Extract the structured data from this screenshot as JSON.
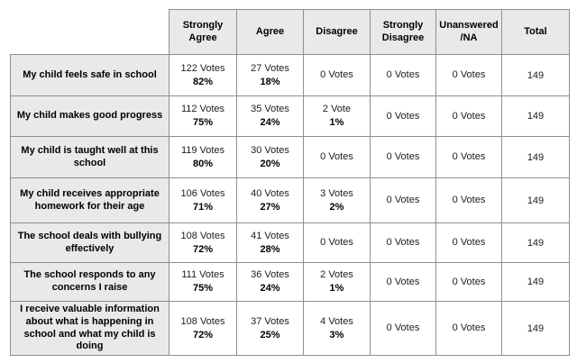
{
  "colors": {
    "header_background": "#e9e9e9",
    "label_background": "#e9e9e9",
    "cell_background": "#ffffff",
    "border": "#8f8f8f",
    "text": "#000000"
  },
  "table": {
    "columns": [
      "Strongly Agree",
      "Agree",
      "Disagree",
      "Strongly Disagree",
      "Unanswered /NA",
      "Total"
    ],
    "rows": [
      {
        "label": "My child feels safe in school",
        "cells": [
          {
            "votes": "122 Votes",
            "pct": "82%"
          },
          {
            "votes": "27 Votes",
            "pct": "18%"
          },
          {
            "votes": "0 Votes",
            "pct": ""
          },
          {
            "votes": "0 Votes",
            "pct": ""
          },
          {
            "votes": "0 Votes",
            "pct": ""
          }
        ],
        "total": "149"
      },
      {
        "label": "My child makes good progress",
        "cells": [
          {
            "votes": "112 Votes",
            "pct": "75%"
          },
          {
            "votes": "35 Votes",
            "pct": "24%"
          },
          {
            "votes": "2 Vote",
            "pct": "1%"
          },
          {
            "votes": "0 Votes",
            "pct": ""
          },
          {
            "votes": "0 Votes",
            "pct": ""
          }
        ],
        "total": "149"
      },
      {
        "label": "My child is taught well at this school",
        "cells": [
          {
            "votes": "119 Votes",
            "pct": "80%"
          },
          {
            "votes": "30 Votes",
            "pct": "20%"
          },
          {
            "votes": "0 Votes",
            "pct": ""
          },
          {
            "votes": "0 Votes",
            "pct": ""
          },
          {
            "votes": "0 Votes",
            "pct": ""
          }
        ],
        "total": "149"
      },
      {
        "label": "My child receives appropriate homework for their age",
        "cells": [
          {
            "votes": "106 Votes",
            "pct": "71%"
          },
          {
            "votes": "40 Votes",
            "pct": "27%"
          },
          {
            "votes": "3 Votes",
            "pct": "2%"
          },
          {
            "votes": "0 Votes",
            "pct": ""
          },
          {
            "votes": "0 Votes",
            "pct": ""
          }
        ],
        "total": "149"
      },
      {
        "label": "The school deals with bullying effectively",
        "cells": [
          {
            "votes": "108 Votes",
            "pct": "72%"
          },
          {
            "votes": "41 Votes",
            "pct": "28%"
          },
          {
            "votes": "0 Votes",
            "pct": ""
          },
          {
            "votes": "0 Votes",
            "pct": ""
          },
          {
            "votes": "0 Votes",
            "pct": ""
          }
        ],
        "total": "149"
      },
      {
        "label": "The school responds to any concerns I raise",
        "cells": [
          {
            "votes": "111 Votes",
            "pct": "75%"
          },
          {
            "votes": "36 Votes",
            "pct": "24%"
          },
          {
            "votes": "2 Votes",
            "pct": "1%"
          },
          {
            "votes": "0 Votes",
            "pct": ""
          },
          {
            "votes": "0 Votes",
            "pct": ""
          }
        ],
        "total": "149"
      },
      {
        "label": "I receive valuable information about what is happening in school and what my child is doing",
        "cells": [
          {
            "votes": "108 Votes",
            "pct": "72%"
          },
          {
            "votes": "37 Votes",
            "pct": "25%"
          },
          {
            "votes": "4 Votes",
            "pct": "3%"
          },
          {
            "votes": "0 Votes",
            "pct": ""
          },
          {
            "votes": "0 Votes",
            "pct": ""
          }
        ],
        "total": "149"
      }
    ]
  },
  "chart_data": {
    "type": "table",
    "columns": [
      "Strongly Agree",
      "Agree",
      "Disagree",
      "Strongly Disagree",
      "Unanswered/NA",
      "Total"
    ],
    "rows": [
      {
        "question": "My child feels safe in school",
        "strongly_agree_votes": 122,
        "strongly_agree_pct": 82,
        "agree_votes": 27,
        "agree_pct": 18,
        "disagree_votes": 0,
        "strongly_disagree_votes": 0,
        "unanswered_na_votes": 0,
        "total": 149
      },
      {
        "question": "My child makes good progress",
        "strongly_agree_votes": 112,
        "strongly_agree_pct": 75,
        "agree_votes": 35,
        "agree_pct": 24,
        "disagree_votes": 2,
        "disagree_pct": 1,
        "strongly_disagree_votes": 0,
        "unanswered_na_votes": 0,
        "total": 149
      },
      {
        "question": "My child is taught well at this school",
        "strongly_agree_votes": 119,
        "strongly_agree_pct": 80,
        "agree_votes": 30,
        "agree_pct": 20,
        "disagree_votes": 0,
        "strongly_disagree_votes": 0,
        "unanswered_na_votes": 0,
        "total": 149
      },
      {
        "question": "My child receives appropriate homework for their age",
        "strongly_agree_votes": 106,
        "strongly_agree_pct": 71,
        "agree_votes": 40,
        "agree_pct": 27,
        "disagree_votes": 3,
        "disagree_pct": 2,
        "strongly_disagree_votes": 0,
        "unanswered_na_votes": 0,
        "total": 149
      },
      {
        "question": "The school deals with bullying effectively",
        "strongly_agree_votes": 108,
        "strongly_agree_pct": 72,
        "agree_votes": 41,
        "agree_pct": 28,
        "disagree_votes": 0,
        "strongly_disagree_votes": 0,
        "unanswered_na_votes": 0,
        "total": 149
      },
      {
        "question": "The school responds to any concerns I raise",
        "strongly_agree_votes": 111,
        "strongly_agree_pct": 75,
        "agree_votes": 36,
        "agree_pct": 24,
        "disagree_votes": 2,
        "disagree_pct": 1,
        "strongly_disagree_votes": 0,
        "unanswered_na_votes": 0,
        "total": 149
      },
      {
        "question": "I receive valuable information about what is happening in school and what my child is doing",
        "strongly_agree_votes": 108,
        "strongly_agree_pct": 72,
        "agree_votes": 37,
        "agree_pct": 25,
        "disagree_votes": 4,
        "disagree_pct": 3,
        "strongly_disagree_votes": 0,
        "unanswered_na_votes": 0,
        "total": 149
      }
    ]
  }
}
